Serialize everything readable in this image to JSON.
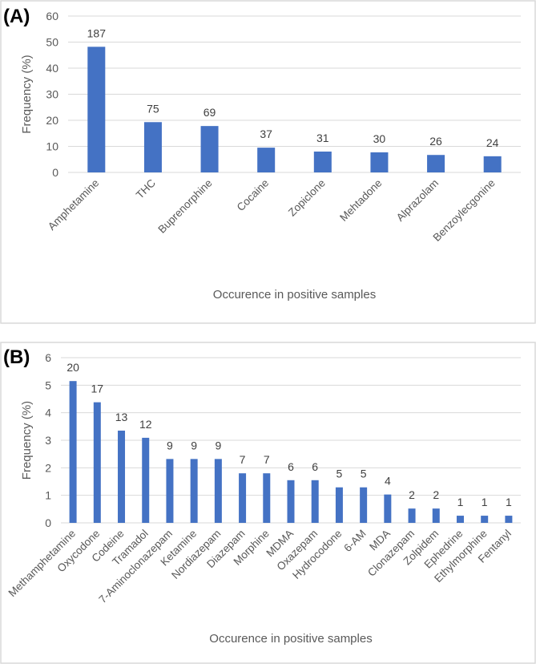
{
  "chart_data": [
    {
      "type": "bar",
      "panel_label": "(A)",
      "title": "",
      "xlabel": "Occurence in positive samples",
      "ylabel": "Frequency (%)",
      "ylim": [
        0,
        60
      ],
      "yticks": [
        0,
        10,
        20,
        30,
        40,
        50,
        60
      ],
      "grid": true,
      "categories": [
        "Amphetamine",
        "THC",
        "Buprenorphine",
        "Cocaine",
        "Zopiclone",
        "Mehtadone",
        "Alprazolam",
        "Benzoylecgonine"
      ],
      "values": [
        48.2,
        19.3,
        17.8,
        9.5,
        8.0,
        7.7,
        6.7,
        6.2
      ],
      "data_labels": [
        "187",
        "75",
        "69",
        "37",
        "31",
        "30",
        "26",
        "24"
      ],
      "color": "#4472C4"
    },
    {
      "type": "bar",
      "panel_label": "(B)",
      "title": "",
      "xlabel": "Occurence in positive samples",
      "ylabel": "Frequency (%)",
      "ylim": [
        0,
        6
      ],
      "yticks": [
        0,
        1,
        2,
        3,
        4,
        5,
        6
      ],
      "grid": true,
      "categories": [
        "Methamphetamine",
        "Oxycodone",
        "Codeine",
        "Tramadol",
        "7-Aminoclonazepam",
        "Ketamine",
        "Nordiazepam",
        "Diazepam",
        "Morphine",
        "MDMA",
        "Oxazepam",
        "Hydrocodone",
        "6-AM",
        "MDA",
        "Clonazepam",
        "Zolpidem",
        "Ephedrine",
        "Ethylmorphine",
        "Fentanyl"
      ],
      "values": [
        5.15,
        4.38,
        3.35,
        3.09,
        2.32,
        2.32,
        2.32,
        1.8,
        1.8,
        1.55,
        1.55,
        1.29,
        1.29,
        1.03,
        0.52,
        0.52,
        0.26,
        0.26,
        0.26
      ],
      "data_labels": [
        "20",
        "17",
        "13",
        "12",
        "9",
        "9",
        "9",
        "7",
        "7",
        "6",
        "6",
        "5",
        "5",
        "4",
        "2",
        "2",
        "1",
        "1",
        "1"
      ],
      "color": "#4472C4"
    }
  ]
}
